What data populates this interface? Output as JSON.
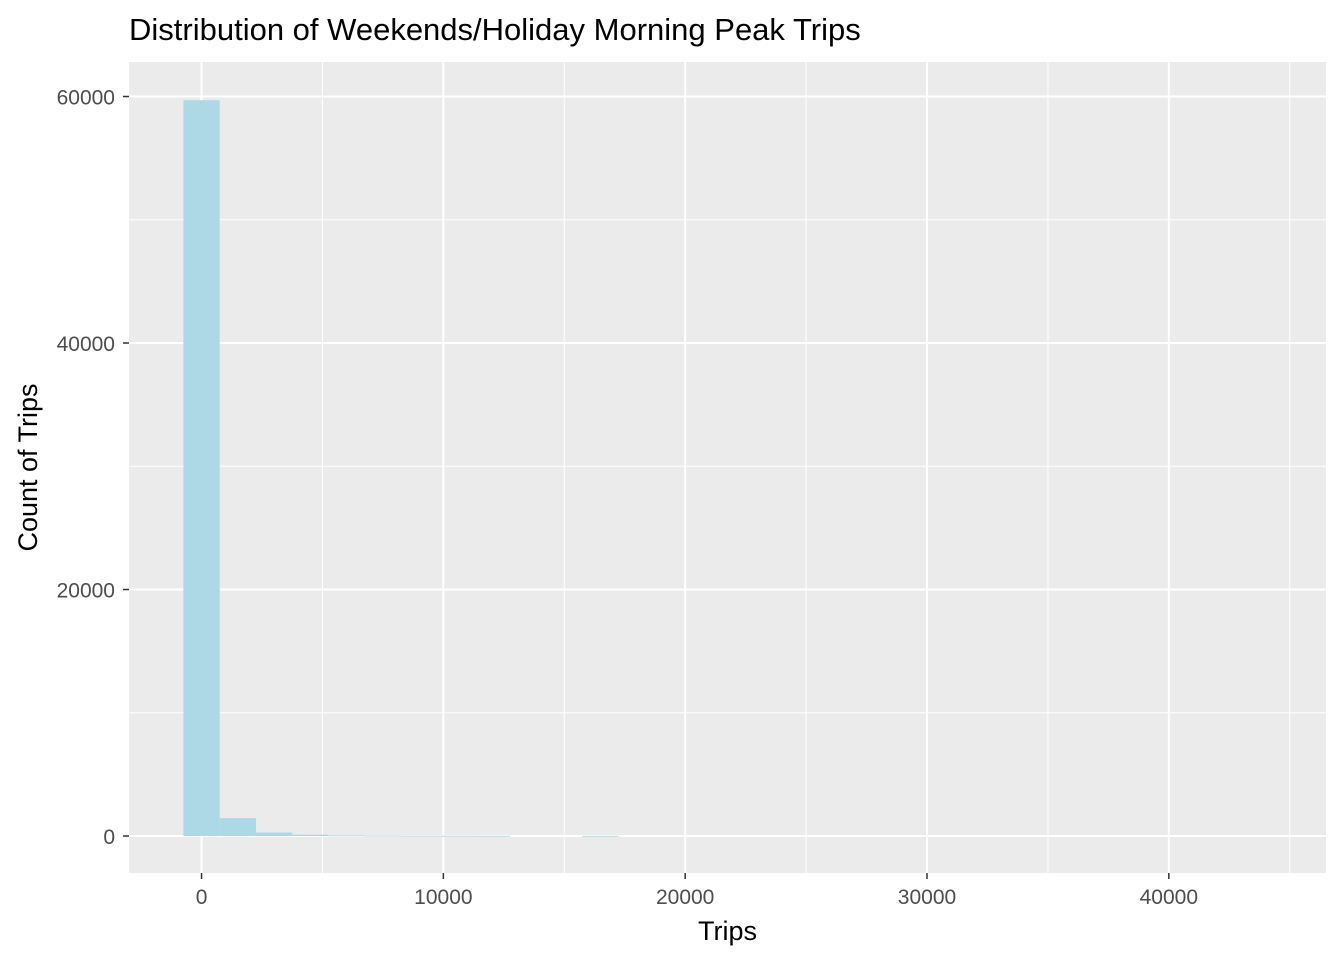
{
  "chart_data": {
    "type": "bar",
    "title": "Distribution of Weekends/Holiday Morning Peak Trips",
    "xlabel": "Trips",
    "ylabel": "Count of Trips",
    "xlim": [
      -3000,
      46500
    ],
    "ylim": [
      -3000,
      62800
    ],
    "xticks": [
      0,
      10000,
      20000,
      30000,
      40000
    ],
    "yticks": [
      0,
      20000,
      40000,
      60000
    ],
    "xtick_labels": [
      "0",
      "10000",
      "20000",
      "30000",
      "40000"
    ],
    "ytick_labels": [
      "0",
      "20000",
      "40000",
      "60000"
    ],
    "bin_width": 1500,
    "bins": [
      {
        "x": 0,
        "count": 59700
      },
      {
        "x": 1500,
        "count": 1450
      },
      {
        "x": 3000,
        "count": 280
      },
      {
        "x": 4500,
        "count": 110
      },
      {
        "x": 6000,
        "count": 60
      },
      {
        "x": 7500,
        "count": 40
      },
      {
        "x": 9000,
        "count": 30
      },
      {
        "x": 10500,
        "count": 25
      },
      {
        "x": 12000,
        "count": 20
      },
      {
        "x": 16500,
        "count": 15
      }
    ],
    "grid": true,
    "colors": {
      "bar": "#add8e6",
      "panel": "#ebebeb",
      "grid": "#ffffff"
    }
  }
}
